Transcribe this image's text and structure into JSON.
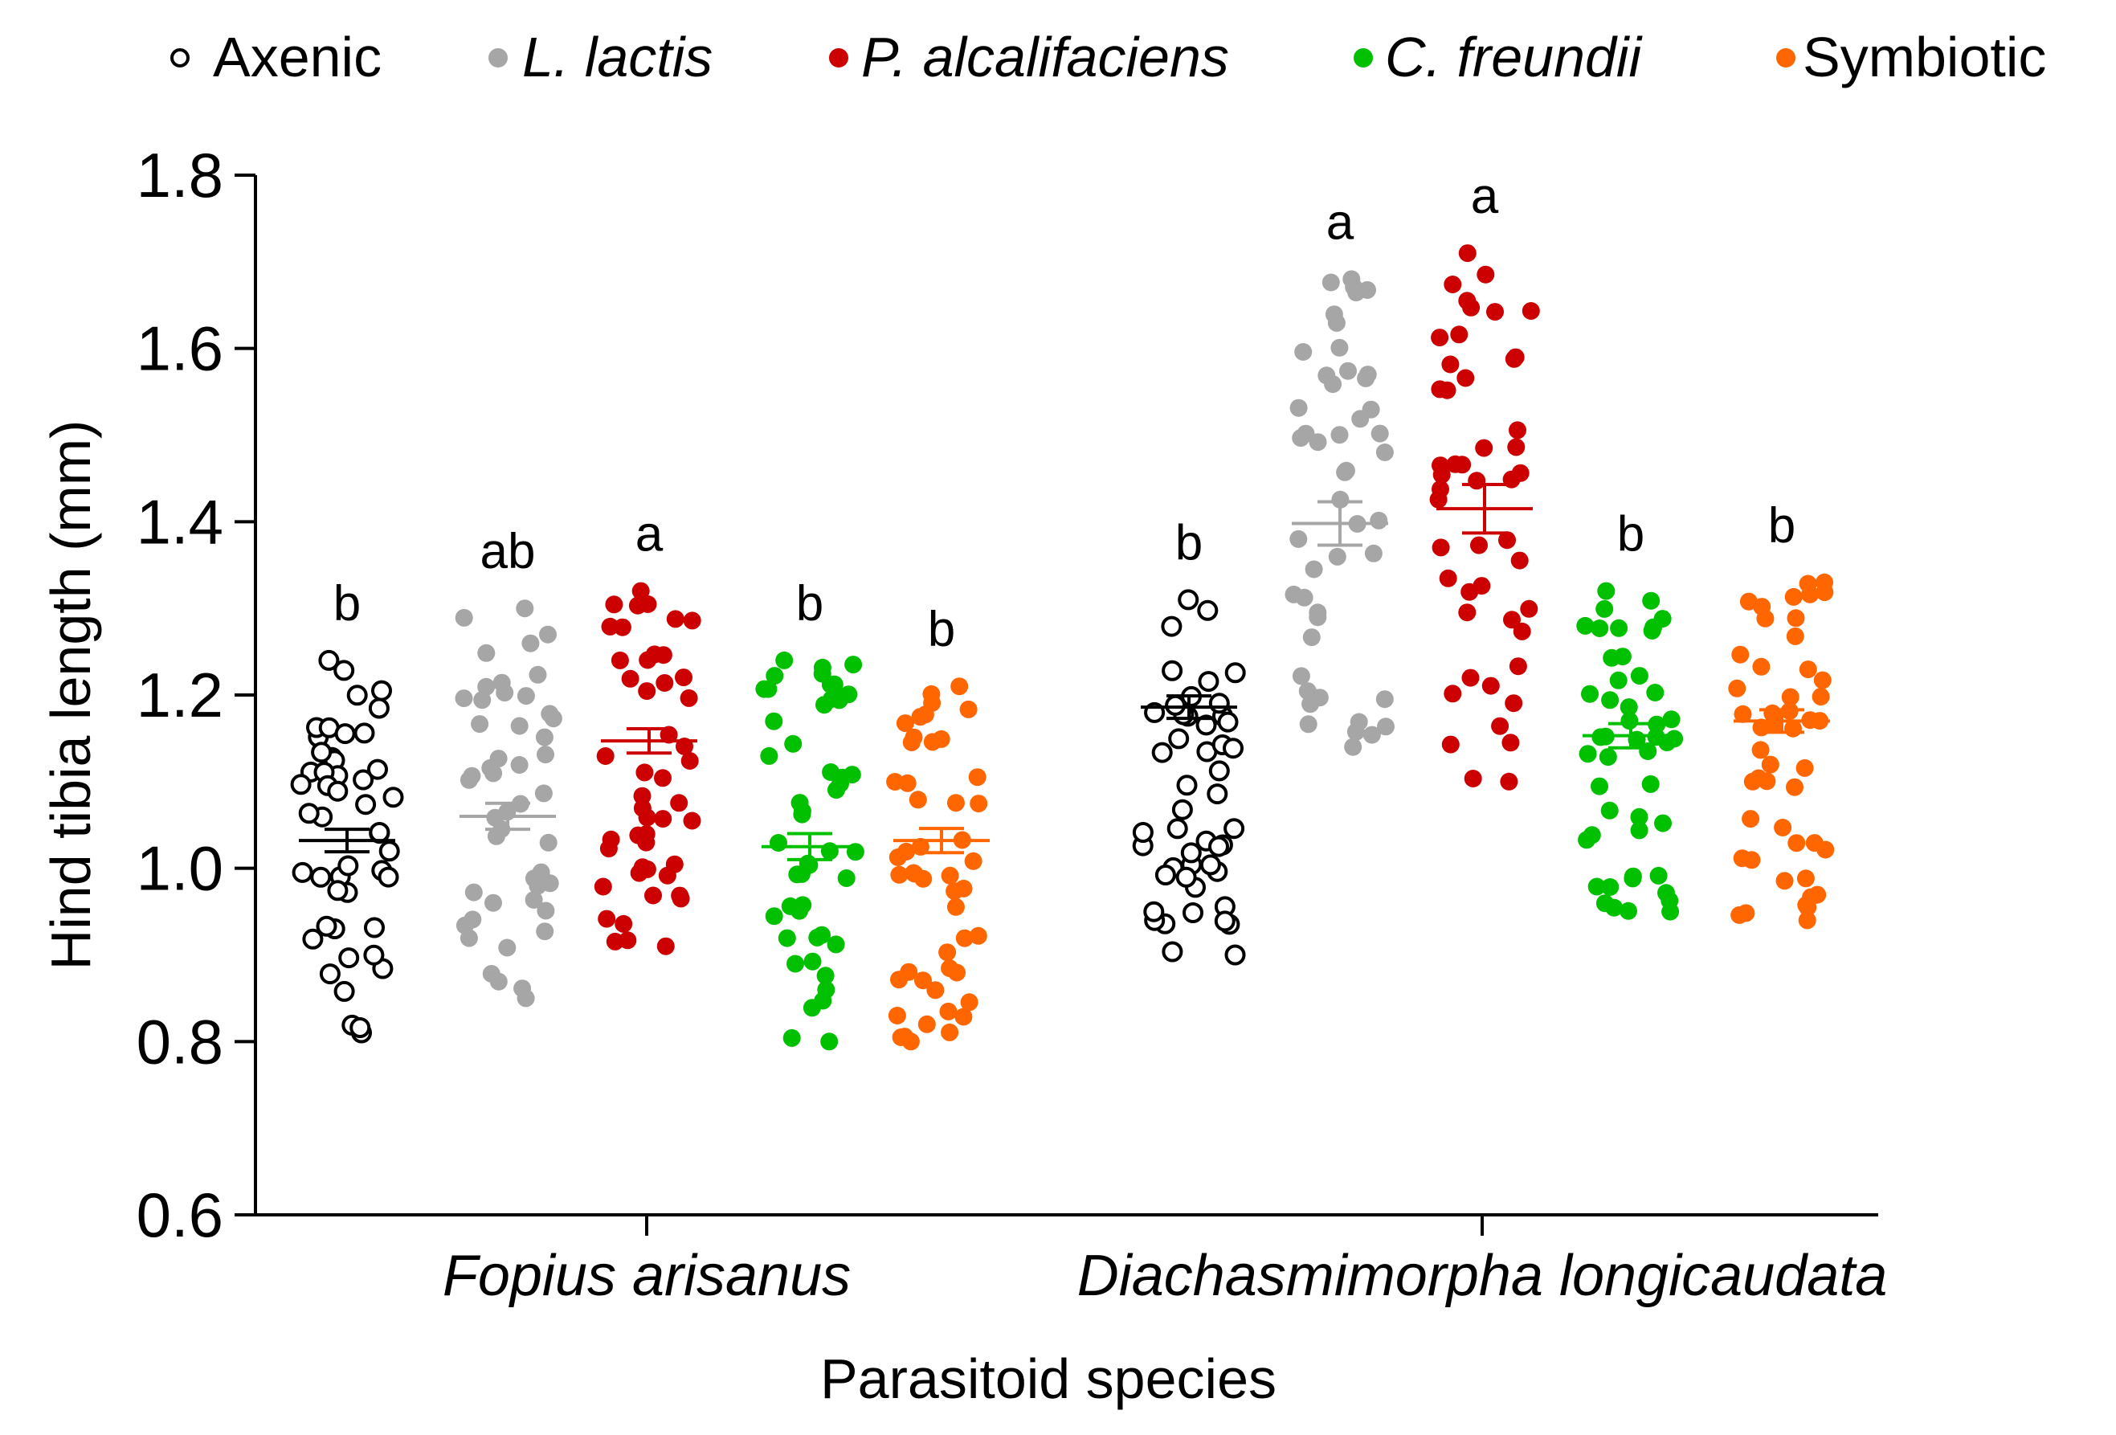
{
  "chart_data": {
    "type": "scatter",
    "ylabel": "Hind tibia length (mm)",
    "xlabel": "Parasitoid species",
    "ylim": [
      0.6,
      1.8
    ],
    "yticks": [
      "0.6",
      "0.8",
      "1.0",
      "1.2",
      "1.4",
      "1.6",
      "1.8"
    ],
    "categories": [
      "Fopius arisanus",
      "Diachasmimorpha longicaudata"
    ],
    "legend": [
      {
        "label": "Axenic",
        "italic": false,
        "color": "#000000",
        "filled": false
      },
      {
        "label": "L. lactis",
        "italic": true,
        "color": "#a6a6a6",
        "filled": true
      },
      {
        "label": "P. alcalifaciens",
        "italic": true,
        "color": "#cc0000",
        "filled": true
      },
      {
        "label": "C. freundii",
        "italic": true,
        "color": "#00c000",
        "filled": true
      },
      {
        "label": "Symbiotic",
        "italic": false,
        "color": "#ff6600",
        "filled": true
      }
    ],
    "series": [
      {
        "name": "Axenic",
        "color": "#000000",
        "filled": false,
        "groups": [
          {
            "mean": 1.032,
            "sem": 0.013,
            "letter": "b",
            "min": 0.81,
            "max": 1.24
          },
          {
            "mean": 1.186,
            "sem": 0.013,
            "letter": "b",
            "min": 0.9,
            "max": 1.31
          }
        ]
      },
      {
        "name": "L. lactis",
        "color": "#a6a6a6",
        "filled": true,
        "groups": [
          {
            "mean": 1.06,
            "sem": 0.015,
            "letter": "ab",
            "min": 0.85,
            "max": 1.3
          },
          {
            "mean": 1.398,
            "sem": 0.025,
            "letter": "a",
            "min": 1.14,
            "max": 1.68
          }
        ]
      },
      {
        "name": "P. alcalifaciens",
        "color": "#cc0000",
        "filled": true,
        "groups": [
          {
            "mean": 1.147,
            "sem": 0.014,
            "letter": "a",
            "min": 0.91,
            "max": 1.32
          },
          {
            "mean": 1.415,
            "sem": 0.028,
            "letter": "a",
            "min": 1.1,
            "max": 1.71
          }
        ]
      },
      {
        "name": "C. freundii",
        "color": "#00c000",
        "filled": true,
        "groups": [
          {
            "mean": 1.025,
            "sem": 0.015,
            "letter": "b",
            "min": 0.8,
            "max": 1.24
          },
          {
            "mean": 1.153,
            "sem": 0.014,
            "letter": "b",
            "min": 0.95,
            "max": 1.32
          }
        ]
      },
      {
        "name": "Symbiotic",
        "color": "#ff6600",
        "filled": true,
        "groups": [
          {
            "mean": 1.032,
            "sem": 0.014,
            "letter": "b",
            "min": 0.8,
            "max": 1.21
          },
          {
            "mean": 1.17,
            "sem": 0.013,
            "letter": "b",
            "min": 0.94,
            "max": 1.33
          }
        ]
      }
    ]
  }
}
